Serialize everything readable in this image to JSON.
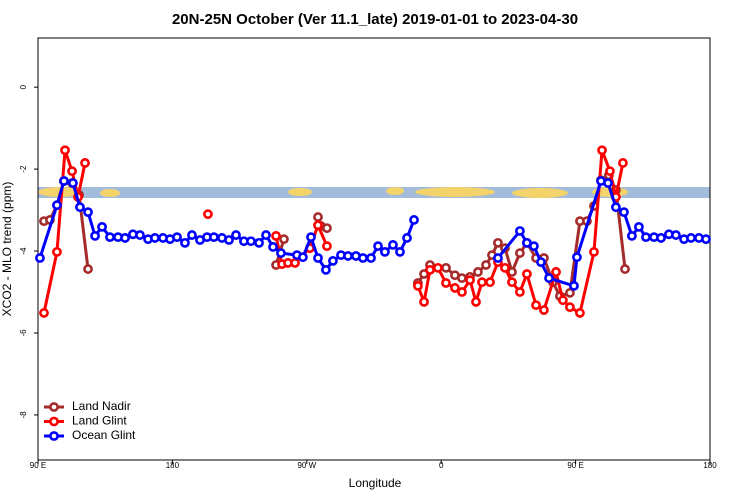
{
  "chart_data": {
    "type": "line",
    "title": "20N-25N October (Ver 11.1_late)   2019-01-01 to 2023-04-30",
    "x_label": "Longitude",
    "y_label": "XCO2 - MLO trend (ppm)",
    "xlim": [
      90,
      540
    ],
    "xticks": [
      {
        "value": 90,
        "label": "90 E"
      },
      180,
      {
        "value": 270,
        "label": "90 W"
      },
      {
        "value": 360,
        "label": "0"
      },
      {
        "value": 450,
        "label": "90 E"
      },
      {
        "value": 540,
        "label": "180"
      }
    ],
    "ylim": [
      -9.1,
      1.2
    ],
    "yticks": [
      0,
      -2,
      -4,
      -6,
      -8
    ],
    "legend": "bottom-left",
    "series": [
      {
        "name": "Land Nadir",
        "color": "#a52a2a",
        "x": [
          94,
          98,
          102.7,
          107.4,
          112.8,
          117.5,
          123.5,
          null,
          249.4,
          254.7,
          null,
          277.5,
          279.5,
          283.5,
          null,
          344.4,
          348.5,
          352.5,
          363.2,
          369.2,
          373.9,
          379.3,
          384.6,
          390.0,
          394.0,
          398.0,
          402.7,
          407.4,
          412.7,
          417.4,
          423.5,
          428.8,
          434.8,
          439.5,
          446.2,
          452.9,
          457.6,
          462.3,
          467.0,
          472.3,
          477.0,
          483.1
        ],
        "values": [
          -3.27,
          -3.24,
          -2.88,
          -2.29,
          -2.34,
          -2.63,
          -4.44,
          null,
          -4.34,
          -3.71,
          null,
          -3.17,
          -3.39,
          -3.44,
          null,
          -4.78,
          -4.56,
          -4.34,
          -4.41,
          -4.59,
          -4.66,
          -4.63,
          -4.51,
          -4.34,
          -4.1,
          -3.8,
          -3.93,
          -4.51,
          -4.05,
          -3.8,
          -4.17,
          -4.17,
          -4.76,
          -5.1,
          -5.02,
          -3.27,
          -3.27,
          -2.9,
          -2.27,
          -2.15,
          -2.51,
          -4.44
        ]
      },
      {
        "name": "Land Glint",
        "color": "#ff0000",
        "x": [
          94,
          102.7,
          108.1,
          112.8,
          116.8,
          121.5,
          null,
          203.8,
          null,
          249.4,
          253.4,
          257.4,
          262.1,
          272.1,
          277.5,
          283.5,
          null,
          344.4,
          348.5,
          352.5,
          357.8,
          363.2,
          369.2,
          373.9,
          379.3,
          383.3,
          387.3,
          392.7,
          398.0,
          402.7,
          407.4,
          412.7,
          417.4,
          423.5,
          428.8,
          436.9,
          441.5,
          446.2,
          452.9,
          462.3,
          467.7,
          473.0,
          477.0,
          481.7
        ],
        "values": [
          -5.51,
          -4.02,
          -1.54,
          -2.05,
          -2.68,
          -1.85,
          null,
          -3.1,
          null,
          -3.63,
          -4.32,
          -4.29,
          -4.29,
          -3.93,
          -3.37,
          -3.88,
          null,
          -4.85,
          -5.24,
          -4.46,
          -4.41,
          -4.78,
          -4.9,
          -5.0,
          -4.71,
          -5.24,
          -4.76,
          -4.76,
          -4.27,
          -4.41,
          -4.76,
          -5.0,
          -4.56,
          -5.32,
          -5.44,
          -4.51,
          -5.2,
          -5.37,
          -5.51,
          -4.02,
          -1.54,
          -2.05,
          -2.68,
          -1.85
        ]
      },
      {
        "name": "Ocean Glint",
        "color": "#0000ff",
        "x": [
          91.3,
          102.7,
          107.4,
          113.4,
          118.1,
          123.5,
          128.2,
          132.9,
          138.2,
          143.6,
          148.3,
          153.6,
          158.3,
          163.7,
          168.3,
          173.7,
          178.4,
          183.1,
          188.4,
          193.1,
          198.5,
          203.2,
          207.8,
          213.2,
          217.9,
          222.6,
          227.9,
          232.6,
          238.0,
          242.7,
          247.4,
          252.7,
          263.4,
          267.4,
          272.8,
          277.5,
          282.8,
          287.5,
          292.9,
          297.6,
          302.9,
          307.6,
          313.0,
          317.7,
          322.3,
          327.7,
          332.4,
          337.1,
          341.8,
          null,
          398.0,
          412.7,
          417.4,
          422.1,
          426.8,
          432.2,
          448.9,
          450.9,
          467.0,
          471.7,
          477.0,
          482.4,
          487.7,
          492.4,
          497.1,
          502.5,
          507.2,
          512.5,
          517.2,
          522.6,
          527.3,
          532.6,
          537.3
        ],
        "values": [
          -4.17,
          -2.88,
          -2.29,
          -2.34,
          -2.93,
          -3.05,
          -3.63,
          -3.41,
          -3.66,
          -3.66,
          -3.68,
          -3.59,
          -3.61,
          -3.71,
          -3.68,
          -3.68,
          -3.71,
          -3.66,
          -3.8,
          -3.61,
          -3.73,
          -3.66,
          -3.66,
          -3.68,
          -3.73,
          -3.61,
          -3.76,
          -3.76,
          -3.8,
          -3.61,
          -3.9,
          -4.05,
          -4.1,
          -4.15,
          -3.66,
          -4.17,
          -4.46,
          -4.24,
          -4.1,
          -4.12,
          -4.12,
          -4.17,
          -4.17,
          -3.88,
          -4.02,
          -3.85,
          -4.02,
          -3.68,
          -3.24,
          null,
          -4.17,
          -3.51,
          -3.8,
          -3.88,
          -4.27,
          -4.66,
          -4.85,
          -4.15,
          -2.29,
          -2.34,
          -2.93,
          -3.05,
          -3.63,
          -3.41,
          -3.66,
          -3.66,
          -3.68,
          -3.59,
          -3.61,
          -3.71,
          -3.68,
          -3.68,
          -3.71
        ]
      }
    ]
  }
}
